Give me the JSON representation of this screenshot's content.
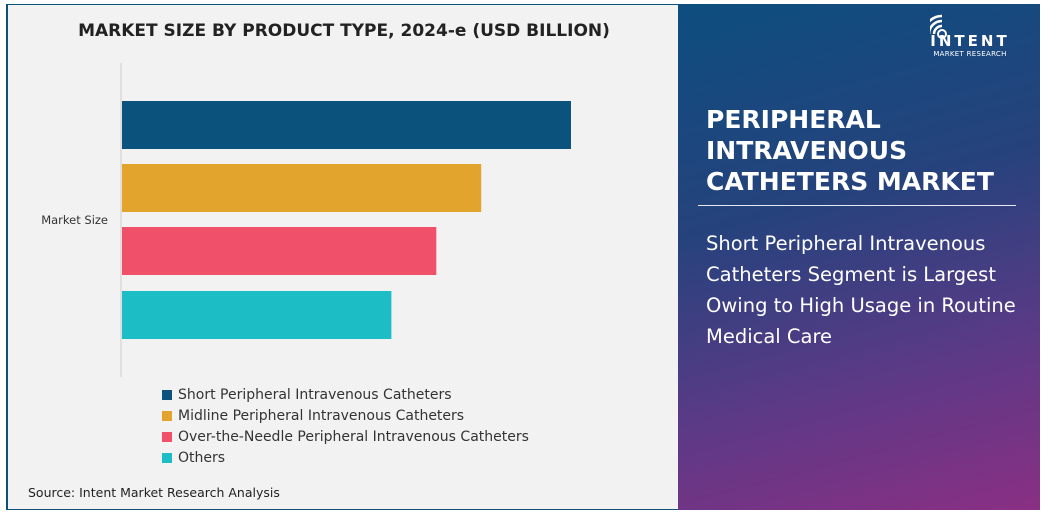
{
  "chart_data": {
    "type": "bar",
    "orientation": "horizontal",
    "title": "MARKET SIZE BY PRODUCT TYPE, 2024-e (USD BILLION)",
    "categories": [
      "Market Size"
    ],
    "series": [
      {
        "name": "Short Peripheral Intravenous Catheters",
        "values": [
          100
        ],
        "color": "#0b527c"
      },
      {
        "name": "Midline Peripheral Intravenous Catheters",
        "values": [
          80
        ],
        "color": "#e2a42d"
      },
      {
        "name": "Over-the-Needle Peripheral Intravenous Catheters",
        "values": [
          70
        ],
        "color": "#f0506a"
      },
      {
        "name": "Others",
        "values": [
          60
        ],
        "color": "#1dbdc6"
      }
    ],
    "value_note_relative": true,
    "xlim": [
      0,
      100
    ],
    "grid": false,
    "legend": "bottom-left"
  },
  "source": "Source: Intent Market Research Analysis",
  "logo": {
    "brand": "INTENT",
    "sub": "MARKET RESEARCH",
    "tm": "™"
  },
  "panel": {
    "title": "PERIPHERAL INTRAVENOUS CATHETERS MARKET",
    "description": "Short Peripheral Intravenous Catheters Segment is Largest Owing to High Usage in Routine Medical Care"
  }
}
